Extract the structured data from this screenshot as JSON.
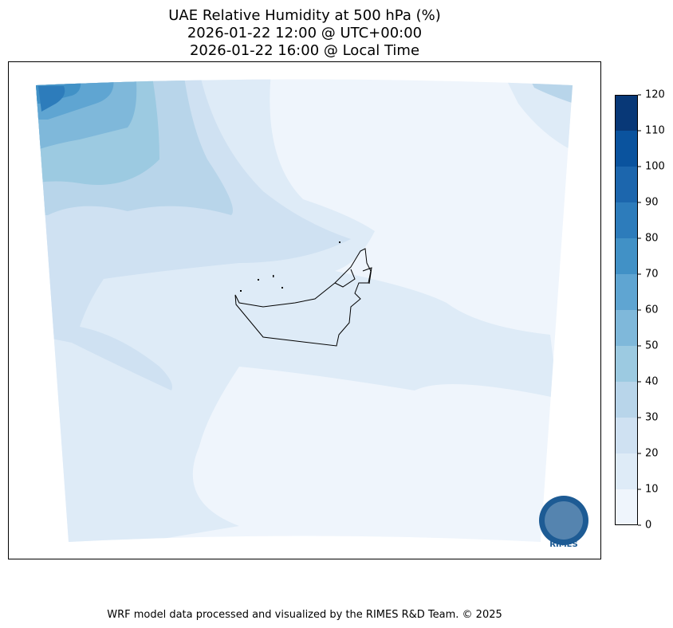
{
  "header": {
    "title": [
      "UAE Relative Humidity at 500 hPa (%)",
      "2026-01-22 12:00 @ UTC+00:00",
      "2026-01-22 16:00 @ Local Time"
    ]
  },
  "colorbar": {
    "ticks": [
      0,
      10,
      20,
      30,
      40,
      50,
      60,
      70,
      80,
      90,
      100,
      110,
      120
    ],
    "colors": [
      "#eff5fc",
      "#deebf7",
      "#cfe1f2",
      "#b8d5ea",
      "#9ccae1",
      "#7fb8da",
      "#5fa5d2",
      "#4191c6",
      "#2d7cbb",
      "#1c66ad",
      "#0a539e",
      "#083877"
    ]
  },
  "logo": {
    "text": "RIMES"
  },
  "footer": {
    "text": "WRF model data processed and visualized by the RIMES R&D Team. © 2025"
  }
}
